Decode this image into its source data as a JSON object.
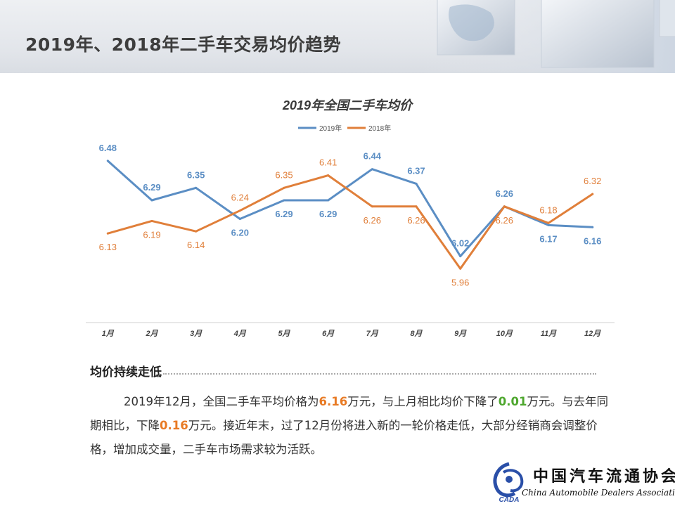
{
  "header": {
    "title": "2019年、2018年二手车交易均价趋势"
  },
  "chart_data": {
    "type": "line",
    "title": "2019年全国二手车均价",
    "categories": [
      "1月",
      "2月",
      "3月",
      "4月",
      "5月",
      "6月",
      "7月",
      "8月",
      "9月",
      "10月",
      "11月",
      "12月"
    ],
    "series": [
      {
        "name": "2019年",
        "color": "#5b8ec4",
        "values": [
          6.48,
          6.29,
          6.35,
          6.2,
          6.29,
          6.29,
          6.44,
          6.37,
          6.02,
          6.26,
          6.17,
          6.16
        ]
      },
      {
        "name": "2018年",
        "color": "#e07f3a",
        "values": [
          6.13,
          6.19,
          6.14,
          6.24,
          6.35,
          6.41,
          6.26,
          6.26,
          5.96,
          6.26,
          6.18,
          6.32
        ]
      }
    ],
    "ylim": [
      5.7,
      6.7
    ],
    "xlabel": "",
    "ylabel": "",
    "legend": "top-center",
    "grid": false
  },
  "section": {
    "heading": "均价持续走低",
    "summary": {
      "p1": "2019年12月，全国二手车平均价格为",
      "v1": "6.16",
      "p2": "万元，与上月相比均价下降了",
      "v2": "0.01",
      "p3": "万元。与去年同期相比，下降",
      "v3": "0.16",
      "p4": "万元。接近年末，过了12月份将进入新的一轮价格走低，大部分经销商会调整价格，增加成交量，二手车市场需求较为活跃。"
    }
  },
  "logo": {
    "cn": "中国汽车流通协会",
    "abbr": "CADA",
    "en": "China Automobile Dealers Association"
  }
}
